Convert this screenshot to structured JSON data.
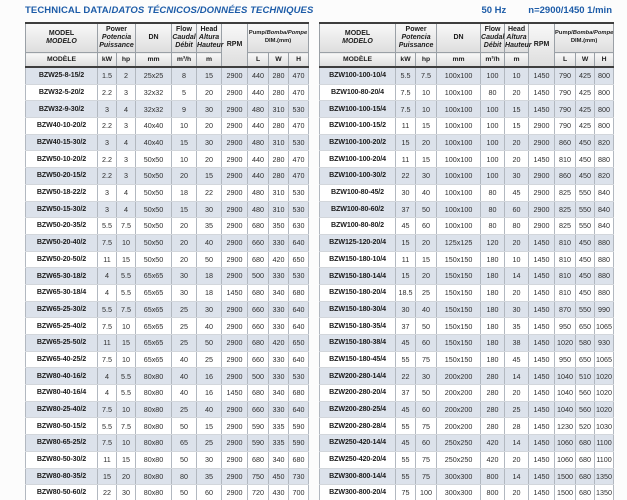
{
  "page": {
    "title_plain": "TECHNICAL DATA/",
    "title_italic": "DATOS TÉCNICOS/DONNÉES TECHNIQUES",
    "frequency": "50 Hz",
    "speed": "n=2900/1450 1/min",
    "colors": {
      "accent_blue": "#1d5ca8",
      "row_stripe": "#dce2eb",
      "header_gray": "#e4e4e4",
      "border_dark": "#3e3e3e"
    }
  },
  "hdr": {
    "model": [
      "MODEL",
      "MODELO",
      "MODÈLE"
    ],
    "power": [
      "Power",
      "Potencia",
      "Puissance"
    ],
    "unit_kw": "kW",
    "unit_hp": "hp",
    "dn": "DN",
    "unit_mm": "mm",
    "flow": [
      "Flow",
      "Caudal",
      "Débit"
    ],
    "unit_flow": "m³/h",
    "head": [
      "Head",
      "Altura",
      "Hauteur"
    ],
    "unit_m": "m",
    "rpm": "RPM",
    "dim_line1_plain": "Pump/",
    "dim_line1_italic": "Bomba/Pompe",
    "dim_line2": "DIM.(mm)",
    "unit_l": "L",
    "unit_w": "W",
    "unit_h": "H"
  },
  "rows_left": [
    [
      "BZW25-8-15/2",
      "1.5",
      "2",
      "25x25",
      "8",
      "15",
      "2900",
      "440",
      "280",
      "470"
    ],
    [
      "BZW32-5-20/2",
      "2.2",
      "3",
      "32x32",
      "5",
      "20",
      "2900",
      "440",
      "280",
      "470"
    ],
    [
      "BZW32-9-30/2",
      "3",
      "4",
      "32x32",
      "9",
      "30",
      "2900",
      "480",
      "310",
      "530"
    ],
    [
      "BZW40-10-20/2",
      "2.2",
      "3",
      "40x40",
      "10",
      "20",
      "2900",
      "440",
      "280",
      "470"
    ],
    [
      "BZW40-15-30/2",
      "3",
      "4",
      "40x40",
      "15",
      "30",
      "2900",
      "480",
      "310",
      "530"
    ],
    [
      "BZW50-10-20/2",
      "2.2",
      "3",
      "50x50",
      "10",
      "20",
      "2900",
      "440",
      "280",
      "470"
    ],
    [
      "BZW50-20-15/2",
      "2.2",
      "3",
      "50x50",
      "20",
      "15",
      "2900",
      "440",
      "280",
      "470"
    ],
    [
      "BZW50-18-22/2",
      "3",
      "4",
      "50x50",
      "18",
      "22",
      "2900",
      "480",
      "310",
      "530"
    ],
    [
      "BZW50-15-30/2",
      "3",
      "4",
      "50x50",
      "15",
      "30",
      "2900",
      "480",
      "310",
      "530"
    ],
    [
      "BZW50-20-35/2",
      "5.5",
      "7.5",
      "50x50",
      "20",
      "35",
      "2900",
      "680",
      "350",
      "630"
    ],
    [
      "BZW50-20-40/2",
      "7.5",
      "10",
      "50x50",
      "20",
      "40",
      "2900",
      "660",
      "330",
      "640"
    ],
    [
      "BZW50-20-50/2",
      "11",
      "15",
      "50x50",
      "20",
      "50",
      "2900",
      "680",
      "420",
      "650"
    ],
    [
      "BZW65-30-18/2",
      "4",
      "5.5",
      "65x65",
      "30",
      "18",
      "2900",
      "500",
      "330",
      "530"
    ],
    [
      "BZW65-30-18/4",
      "4",
      "5.5",
      "65x65",
      "30",
      "18",
      "1450",
      "680",
      "340",
      "680"
    ],
    [
      "BZW65-25-30/2",
      "5.5",
      "7.5",
      "65x65",
      "25",
      "30",
      "2900",
      "660",
      "330",
      "640"
    ],
    [
      "BZW65-25-40/2",
      "7.5",
      "10",
      "65x65",
      "25",
      "40",
      "2900",
      "660",
      "330",
      "640"
    ],
    [
      "BZW65-25-50/2",
      "11",
      "15",
      "65x65",
      "25",
      "50",
      "2900",
      "680",
      "420",
      "650"
    ],
    [
      "BZW65-40-25/2",
      "7.5",
      "10",
      "65x65",
      "40",
      "25",
      "2900",
      "660",
      "330",
      "640"
    ],
    [
      "BZW80-40-16/2",
      "4",
      "5.5",
      "80x80",
      "40",
      "16",
      "2900",
      "500",
      "330",
      "530"
    ],
    [
      "BZW80-40-16/4",
      "4",
      "5.5",
      "80x80",
      "40",
      "16",
      "1450",
      "680",
      "340",
      "680"
    ],
    [
      "BZW80-25-40/2",
      "7.5",
      "10",
      "80x80",
      "25",
      "40",
      "2900",
      "660",
      "330",
      "640"
    ],
    [
      "BZW80-50-15/2",
      "5.5",
      "7.5",
      "80x80",
      "50",
      "15",
      "2900",
      "590",
      "335",
      "590"
    ],
    [
      "BZW80-65-25/2",
      "7.5",
      "10",
      "80x80",
      "65",
      "25",
      "2900",
      "590",
      "335",
      "590"
    ],
    [
      "BZW80-50-30/2",
      "11",
      "15",
      "80x80",
      "50",
      "30",
      "2900",
      "680",
      "340",
      "680"
    ],
    [
      "BZW80-80-35/2",
      "15",
      "20",
      "80x80",
      "80",
      "35",
      "2900",
      "750",
      "450",
      "730"
    ],
    [
      "BZW80-50-60/2",
      "22",
      "30",
      "80x80",
      "50",
      "60",
      "2900",
      "720",
      "430",
      "700"
    ]
  ],
  "rows_right": [
    [
      "BZW100-100-10/4",
      "5.5",
      "7.5",
      "100x100",
      "100",
      "10",
      "1450",
      "790",
      "425",
      "800"
    ],
    [
      "BZW100-80-20/4",
      "7.5",
      "10",
      "100x100",
      "80",
      "20",
      "1450",
      "790",
      "425",
      "800"
    ],
    [
      "BZW100-100-15/4",
      "7.5",
      "10",
      "100x100",
      "100",
      "15",
      "1450",
      "790",
      "425",
      "800"
    ],
    [
      "BZW100-100-15/2",
      "11",
      "15",
      "100x100",
      "100",
      "15",
      "2900",
      "790",
      "425",
      "800"
    ],
    [
      "BZW100-100-20/2",
      "15",
      "20",
      "100x100",
      "100",
      "20",
      "2900",
      "860",
      "450",
      "820"
    ],
    [
      "BZW100-100-20/4",
      "11",
      "15",
      "100x100",
      "100",
      "20",
      "1450",
      "810",
      "450",
      "880"
    ],
    [
      "BZW100-100-30/2",
      "22",
      "30",
      "100x100",
      "100",
      "30",
      "2900",
      "860",
      "450",
      "820"
    ],
    [
      "BZW100-80-45/2",
      "30",
      "40",
      "100x100",
      "80",
      "45",
      "2900",
      "825",
      "550",
      "840"
    ],
    [
      "BZW100-80-60/2",
      "37",
      "50",
      "100x100",
      "80",
      "60",
      "2900",
      "825",
      "550",
      "840"
    ],
    [
      "BZW100-80-80/2",
      "45",
      "60",
      "100x100",
      "80",
      "80",
      "2900",
      "825",
      "550",
      "840"
    ],
    [
      "BZW125-120-20/4",
      "15",
      "20",
      "125x125",
      "120",
      "20",
      "1450",
      "810",
      "450",
      "880"
    ],
    [
      "BZW150-180-10/4",
      "11",
      "15",
      "150x150",
      "180",
      "10",
      "1450",
      "810",
      "450",
      "880"
    ],
    [
      "BZW150-180-14/4",
      "15",
      "20",
      "150x150",
      "180",
      "14",
      "1450",
      "810",
      "450",
      "880"
    ],
    [
      "BZW150-180-20/4",
      "18.5",
      "25",
      "150x150",
      "180",
      "20",
      "1450",
      "810",
      "450",
      "880"
    ],
    [
      "BZW150-180-30/4",
      "30",
      "40",
      "150x150",
      "180",
      "30",
      "1450",
      "870",
      "550",
      "990"
    ],
    [
      "BZW150-180-35/4",
      "37",
      "50",
      "150x150",
      "180",
      "35",
      "1450",
      "950",
      "650",
      "1065"
    ],
    [
      "BZW150-180-38/4",
      "45",
      "60",
      "150x150",
      "180",
      "38",
      "1450",
      "1020",
      "580",
      "930"
    ],
    [
      "BZW150-180-45/4",
      "55",
      "75",
      "150x150",
      "180",
      "45",
      "1450",
      "950",
      "650",
      "1065"
    ],
    [
      "BZW200-280-14/4",
      "22",
      "30",
      "200x200",
      "280",
      "14",
      "1450",
      "1040",
      "510",
      "1020"
    ],
    [
      "BZW200-280-20/4",
      "37",
      "50",
      "200x200",
      "280",
      "20",
      "1450",
      "1040",
      "560",
      "1020"
    ],
    [
      "BZW200-280-25/4",
      "45",
      "60",
      "200x200",
      "280",
      "25",
      "1450",
      "1040",
      "560",
      "1020"
    ],
    [
      "BZW200-280-28/4",
      "55",
      "75",
      "200x200",
      "280",
      "28",
      "1450",
      "1230",
      "520",
      "1030"
    ],
    [
      "BZW250-420-14/4",
      "45",
      "60",
      "250x250",
      "420",
      "14",
      "1450",
      "1060",
      "680",
      "1100"
    ],
    [
      "BZW250-420-20/4",
      "55",
      "75",
      "250x250",
      "420",
      "20",
      "1450",
      "1060",
      "680",
      "1100"
    ],
    [
      "BZW300-800-14/4",
      "55",
      "75",
      "300x300",
      "800",
      "14",
      "1450",
      "1500",
      "680",
      "1350"
    ],
    [
      "BZW300-800-20/4",
      "75",
      "100",
      "300x300",
      "800",
      "20",
      "1450",
      "1500",
      "680",
      "1350"
    ]
  ]
}
